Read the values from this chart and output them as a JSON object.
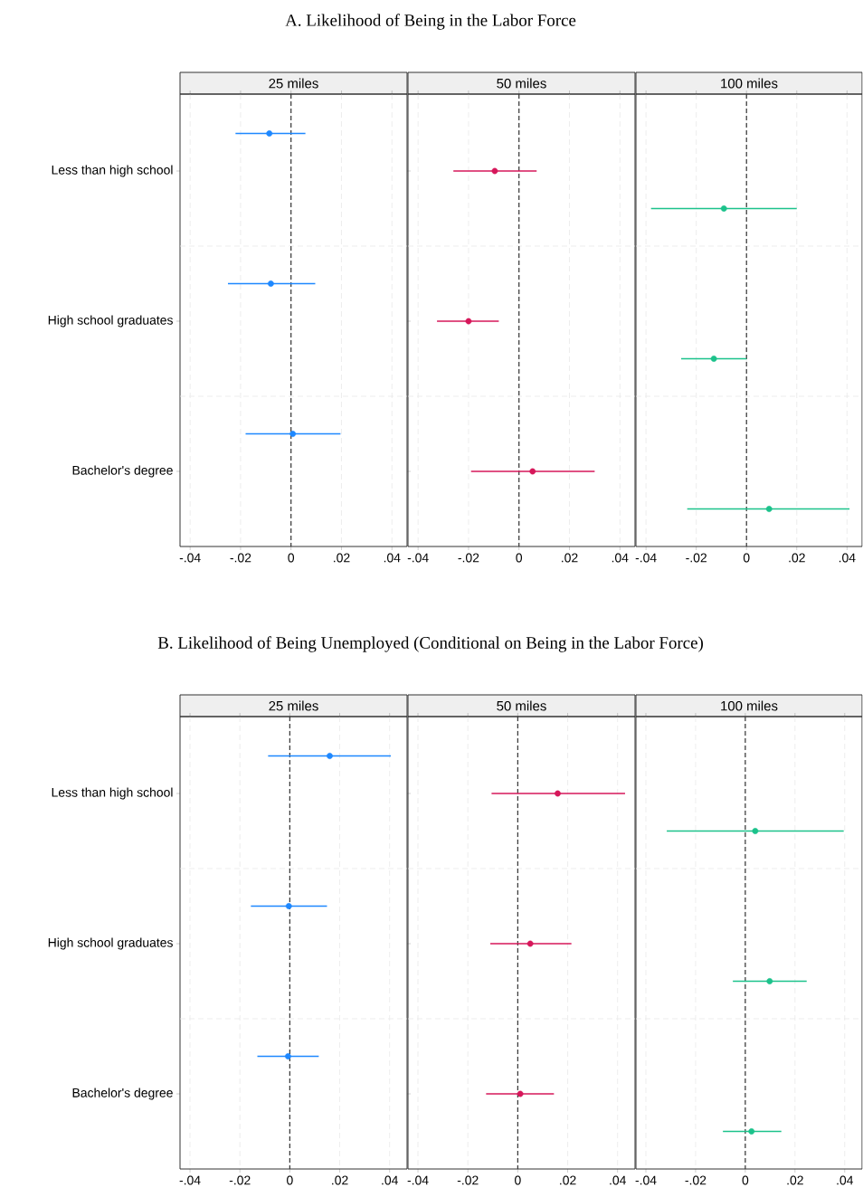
{
  "chart_data": [
    {
      "type": "scatter",
      "orientation": "horizontal",
      "title": "25 miles",
      "annotations": [
        "A. Likelihood of Being in the Labor Force"
      ],
      "categories": [
        "Less than high school",
        "High school graduates",
        "Bachelor's degree"
      ],
      "color": "#1e88ff",
      "marker": "circle",
      "grid": true,
      "values": [
        -0.0086,
        -0.008,
        0.0007
      ],
      "errors": [
        [
          -0.022,
          0.0057
        ],
        [
          -0.025,
          0.0096
        ],
        [
          -0.018,
          0.0196
        ]
      ],
      "xlim": [
        -0.044,
        0.046
      ],
      "xticks": [
        {
          "value": -0.04,
          "label": "-.04"
        },
        {
          "value": -0.02,
          "label": "-.02"
        },
        0,
        {
          "value": 0.02,
          "label": ".02"
        },
        {
          "value": 0.04,
          "label": ".04"
        }
      ],
      "ref_lines": [
        {
          "axis": "x",
          "value": 0,
          "color": "#333333",
          "line_style": "dashed"
        }
      ]
    },
    {
      "type": "scatter",
      "orientation": "horizontal",
      "title": "50 miles",
      "categories": [
        null,
        null,
        null
      ],
      "color": "#d6175a",
      "marker": "circle",
      "grid": true,
      "tick_labels": "x",
      "values": [
        -0.0096,
        -0.02,
        0.0054
      ],
      "errors": [
        [
          -0.026,
          0.007
        ],
        [
          -0.0325,
          -0.008
        ],
        [
          -0.019,
          0.03
        ]
      ],
      "xlim": [
        -0.044,
        0.046
      ],
      "xticks": [
        {
          "value": -0.04,
          "label": "-.04"
        },
        {
          "value": -0.02,
          "label": "-.02"
        },
        0,
        {
          "value": 0.02,
          "label": ".02"
        },
        {
          "value": 0.04,
          "label": ".04"
        }
      ],
      "ref_lines": [
        {
          "axis": "x",
          "value": 0,
          "color": "#333333",
          "line_style": "dashed"
        }
      ]
    },
    {
      "type": "scatter",
      "orientation": "horizontal",
      "title": "100 miles",
      "categories": [
        null,
        null,
        null
      ],
      "color": "#1cc28b",
      "marker": "circle",
      "grid": true,
      "tick_labels": "x",
      "values": [
        -0.009,
        -0.013,
        0.009
      ],
      "errors": [
        [
          -0.038,
          0.02
        ],
        [
          -0.026,
          0.0
        ],
        [
          -0.0236,
          0.041
        ]
      ],
      "xlim": [
        -0.044,
        0.046
      ],
      "xticks": [
        {
          "value": -0.04,
          "label": "-.04"
        },
        {
          "value": -0.02,
          "label": "-.02"
        },
        0,
        {
          "value": 0.02,
          "label": ".02"
        },
        {
          "value": 0.04,
          "label": ".04"
        }
      ],
      "ref_lines": [
        {
          "axis": "x",
          "value": 0,
          "color": "#333333",
          "line_style": "dashed"
        }
      ]
    },
    {
      "type": "scatter",
      "orientation": "horizontal",
      "title": "25 miles",
      "annotations": [
        "B. Likelihood of Being Unemployed (Conditional on Being in the Labor Force)"
      ],
      "categories": [
        "Less than high school",
        "High school graduates",
        "Bachelor's degree"
      ],
      "color": "#1e88ff",
      "marker": "circle",
      "grid": true,
      "values": [
        0.016,
        -0.0004,
        -0.0007
      ],
      "errors": [
        [
          -0.0087,
          0.0405
        ],
        [
          -0.0156,
          0.0149
        ],
        [
          -0.013,
          0.0116
        ]
      ],
      "xlim": [
        -0.044,
        0.047
      ],
      "xticks": [
        {
          "value": -0.04,
          "label": "-.04"
        },
        {
          "value": -0.02,
          "label": "-.02"
        },
        0,
        {
          "value": 0.02,
          "label": ".02"
        },
        {
          "value": 0.04,
          "label": ".04"
        }
      ],
      "ref_lines": [
        {
          "axis": "x",
          "value": 0,
          "color": "#333333",
          "line_style": "dashed"
        }
      ]
    },
    {
      "type": "scatter",
      "orientation": "horizontal",
      "title": "50 miles",
      "categories": [
        null,
        null,
        null
      ],
      "color": "#d6175a",
      "marker": "circle",
      "grid": true,
      "tick_labels": "x",
      "values": [
        0.016,
        0.005,
        0.001
      ],
      "errors": [
        [
          -0.0105,
          0.043
        ],
        [
          -0.011,
          0.0215
        ],
        [
          -0.0127,
          0.0145
        ]
      ],
      "xlim": [
        -0.044,
        0.047
      ],
      "xticks": [
        {
          "value": -0.04,
          "label": "-.04"
        },
        {
          "value": -0.02,
          "label": "-.02"
        },
        0,
        {
          "value": 0.02,
          "label": ".02"
        },
        {
          "value": 0.04,
          "label": ".04"
        }
      ],
      "ref_lines": [
        {
          "axis": "x",
          "value": 0,
          "color": "#333333",
          "line_style": "dashed"
        }
      ]
    },
    {
      "type": "scatter",
      "orientation": "horizontal",
      "title": "100 miles",
      "categories": [
        null,
        null,
        null
      ],
      "color": "#1cc28b",
      "marker": "circle",
      "grid": true,
      "tick_labels": "x",
      "values": [
        0.004,
        0.0098,
        0.0025
      ],
      "errors": [
        [
          -0.0316,
          0.0396
        ],
        [
          -0.005,
          0.0247
        ],
        [
          -0.009,
          0.0145
        ]
      ],
      "xlim": [
        -0.044,
        0.047
      ],
      "xticks": [
        {
          "value": -0.04,
          "label": "-.04"
        },
        {
          "value": -0.02,
          "label": "-.02"
        },
        0,
        {
          "value": 0.02,
          "label": ".02"
        },
        {
          "value": 0.04,
          "label": ".04"
        }
      ],
      "ref_lines": [
        {
          "axis": "x",
          "value": 0,
          "color": "#333333",
          "line_style": "dashed"
        }
      ]
    }
  ]
}
